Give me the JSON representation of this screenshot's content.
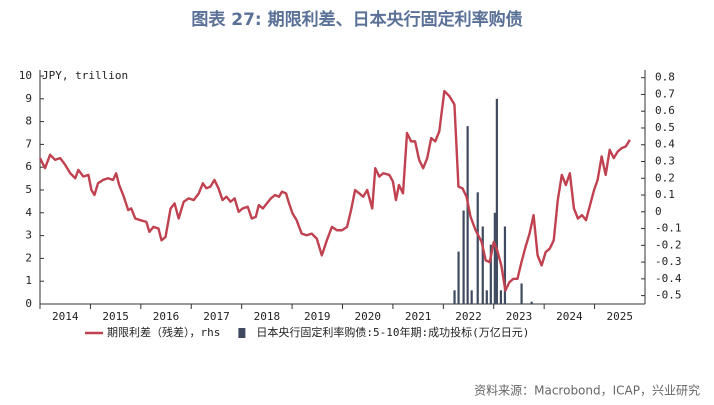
{
  "chart_data": {
    "type": "bar_line",
    "title": "图表 27: 期限利差、日本央行固定利率购债",
    "y_label": "JPY, trillion",
    "source": "资料来源：Macrobond，ICAP，兴业研究",
    "xlim": [
      2014,
      2026
    ],
    "xticks": [
      2014,
      2015,
      2016,
      2017,
      2018,
      2019,
      2020,
      2021,
      2022,
      2023,
      2024,
      2025
    ],
    "ylim": [
      0,
      10
    ],
    "yticks": [
      0,
      1,
      2,
      3,
      4,
      5,
      6,
      7,
      8,
      9,
      10
    ],
    "y2lim": [
      -0.55,
      0.81
    ],
    "y2ticks": [
      0.8,
      0.7,
      0.6,
      0.5,
      0.4,
      0.3,
      0.2,
      0.1,
      0,
      -0.1,
      -0.2,
      -0.3,
      -0.4,
      -0.5
    ],
    "series": [
      {
        "name": "期限利差（残差），rhs",
        "type": "line",
        "axis": "y2",
        "color": "#c0414f",
        "x": [
          2014.0,
          2014.1,
          2014.2,
          2014.3,
          2014.4,
          2014.5,
          2014.6,
          2014.7,
          2014.76,
          2014.86,
          2014.96,
          2015.02,
          2015.08,
          2015.15,
          2015.25,
          2015.35,
          2015.45,
          2015.51,
          2015.57,
          2015.65,
          2015.75,
          2015.81,
          2015.89,
          2015.99,
          2016.11,
          2016.17,
          2016.25,
          2016.35,
          2016.41,
          2016.49,
          2016.59,
          2016.67,
          2016.75,
          2016.85,
          2016.95,
          2017.05,
          2017.15,
          2017.23,
          2017.3,
          2017.38,
          2017.46,
          2017.54,
          2017.62,
          2017.7,
          2017.78,
          2017.86,
          2017.94,
          2018.02,
          2018.12,
          2018.2,
          2018.28,
          2018.34,
          2018.42,
          2018.5,
          2018.58,
          2018.66,
          2018.74,
          2018.8,
          2018.88,
          2018.94,
          2019.01,
          2019.09,
          2019.19,
          2019.29,
          2019.39,
          2019.49,
          2019.59,
          2019.69,
          2019.79,
          2019.89,
          2019.99,
          2020.09,
          2020.17,
          2020.25,
          2020.33,
          2020.41,
          2020.49,
          2020.59,
          2020.65,
          2020.73,
          2020.81,
          2020.93,
          2021.0,
          2021.06,
          2021.12,
          2021.2,
          2021.28,
          2021.36,
          2021.44,
          2021.52,
          2021.6,
          2021.68,
          2021.76,
          2021.84,
          2021.92,
          2022.02,
          2022.12,
          2022.22,
          2022.3,
          2022.38,
          2022.46,
          2022.54,
          2022.64,
          2022.76,
          2022.84,
          2022.92,
          2023.0,
          2023.07,
          2023.15,
          2023.23,
          2023.31,
          2023.39,
          2023.47,
          2023.55,
          2023.63,
          2023.71,
          2023.79,
          2023.87,
          2023.95,
          2024.03,
          2024.11,
          2024.19,
          2024.27,
          2024.35,
          2024.43,
          2024.51,
          2024.59,
          2024.67,
          2024.75,
          2024.83,
          2024.91,
          2024.99,
          2025.06,
          2025.14,
          2025.22,
          2025.3,
          2025.38,
          2025.46,
          2025.54,
          2025.62,
          2025.7
        ],
        "values": [
          0.32,
          0.26,
          0.34,
          0.31,
          0.32,
          0.28,
          0.23,
          0.2,
          0.25,
          0.21,
          0.22,
          0.13,
          0.1,
          0.17,
          0.19,
          0.2,
          0.19,
          0.23,
          0.16,
          0.1,
          0.01,
          0.02,
          -0.04,
          -0.05,
          -0.06,
          -0.12,
          -0.09,
          -0.1,
          -0.17,
          -0.15,
          0.02,
          0.05,
          -0.04,
          0.06,
          0.08,
          0.07,
          0.11,
          0.17,
          0.14,
          0.15,
          0.19,
          0.14,
          0.07,
          0.09,
          0.06,
          0.08,
          0.0,
          0.02,
          0.03,
          -0.04,
          -0.03,
          0.04,
          0.02,
          0.05,
          0.08,
          0.1,
          0.09,
          0.12,
          0.11,
          0.05,
          -0.01,
          -0.05,
          -0.13,
          -0.14,
          -0.13,
          -0.16,
          -0.26,
          -0.17,
          -0.09,
          -0.11,
          -0.11,
          -0.09,
          0.01,
          0.13,
          0.11,
          0.09,
          0.13,
          0.02,
          0.26,
          0.21,
          0.23,
          0.22,
          0.18,
          0.07,
          0.16,
          0.11,
          0.47,
          0.42,
          0.42,
          0.31,
          0.26,
          0.32,
          0.44,
          0.42,
          0.48,
          0.72,
          0.69,
          0.64,
          0.15,
          0.14,
          0.09,
          -0.03,
          -0.11,
          -0.18,
          -0.29,
          -0.3,
          -0.18,
          -0.23,
          -0.32,
          -0.47,
          -0.42,
          -0.4,
          -0.4,
          -0.3,
          -0.21,
          -0.13,
          -0.02,
          -0.26,
          -0.32,
          -0.24,
          -0.22,
          -0.17,
          0.07,
          0.22,
          0.16,
          0.23,
          0.02,
          -0.04,
          -0.02,
          -0.05,
          0.04,
          0.13,
          0.19,
          0.33,
          0.22,
          0.37,
          0.32,
          0.36,
          0.38,
          0.39,
          0.43
        ]
      },
      {
        "name": "日本央行固定利率购债:5-10年期:成功投标(万亿日元)",
        "type": "bar",
        "axis": "y",
        "color": "#3f4a60",
        "x": [
          2022.22,
          2022.3,
          2022.4,
          2022.48,
          2022.56,
          2022.68,
          2022.78,
          2022.86,
          2022.94,
          2023.02,
          2023.06,
          2023.14,
          2023.22,
          2023.55,
          2023.75
        ],
        "values": [
          0.6,
          2.3,
          4.1,
          7.8,
          0.6,
          4.9,
          3.4,
          0.6,
          2.6,
          4.0,
          9.0,
          0.6,
          3.4,
          0.9,
          0.1
        ]
      }
    ]
  }
}
